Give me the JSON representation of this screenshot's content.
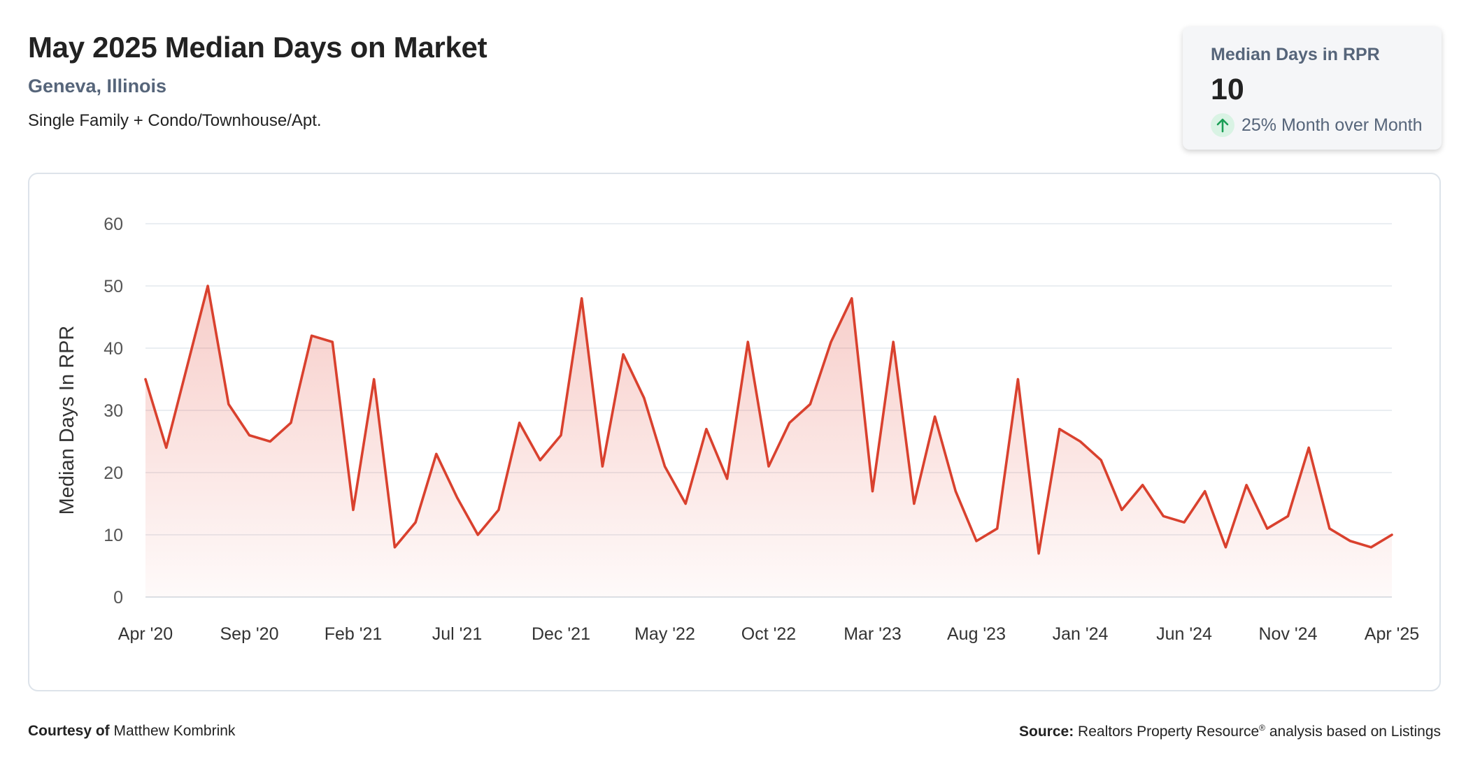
{
  "header": {
    "title": "May 2025 Median Days on Market",
    "location": "Geneva, Illinois",
    "property_types": "Single Family + Condo/Townhouse/Apt."
  },
  "kpi": {
    "label": "Median Days in RPR",
    "value": "10",
    "change": "25% Month over Month",
    "trend_icon": "arrow-up-icon",
    "trend_color": "#1a9e55"
  },
  "footer": {
    "courtesy_label": "Courtesy of",
    "courtesy_name": "Matthew Kombrink",
    "source_label": "Source:",
    "source_name": "Realtors Property Resource",
    "source_mark": "®",
    "source_suffix": "analysis based on Listings"
  },
  "chart_data": {
    "type": "area",
    "title": "",
    "xlabel": "",
    "ylabel": "Median Days In RPR",
    "ylim": [
      0,
      60
    ],
    "yticks": [
      0,
      10,
      20,
      30,
      40,
      50,
      60
    ],
    "grid": true,
    "legend": "none",
    "line_color": "#d9412e",
    "x_tick_labels": [
      "Apr '20",
      "Sep '20",
      "Feb '21",
      "Jul '21",
      "Dec '21",
      "May '22",
      "Oct '22",
      "Mar '23",
      "Aug '23",
      "Jan '24",
      "Jun '24",
      "Nov '24",
      "Apr '25"
    ],
    "x": [
      "2020-04",
      "2020-05",
      "2020-06",
      "2020-07",
      "2020-08",
      "2020-09",
      "2020-10",
      "2020-11",
      "2020-12",
      "2021-01",
      "2021-02",
      "2021-03",
      "2021-04",
      "2021-05",
      "2021-06",
      "2021-07",
      "2021-08",
      "2021-09",
      "2021-10",
      "2021-11",
      "2021-12",
      "2022-01",
      "2022-02",
      "2022-03",
      "2022-04",
      "2022-05",
      "2022-06",
      "2022-07",
      "2022-08",
      "2022-09",
      "2022-10",
      "2022-11",
      "2022-12",
      "2023-01",
      "2023-02",
      "2023-03",
      "2023-04",
      "2023-05",
      "2023-06",
      "2023-07",
      "2023-08",
      "2023-09",
      "2023-10",
      "2023-11",
      "2023-12",
      "2024-01",
      "2024-02",
      "2024-03",
      "2024-04",
      "2024-05",
      "2024-06",
      "2024-07",
      "2024-08",
      "2024-09",
      "2024-10",
      "2024-11",
      "2024-12",
      "2025-01",
      "2025-02",
      "2025-03",
      "2025-04"
    ],
    "values": [
      35,
      24,
      37,
      50,
      31,
      26,
      25,
      28,
      42,
      41,
      14,
      35,
      8,
      12,
      23,
      16,
      10,
      14,
      28,
      22,
      26,
      48,
      21,
      39,
      32,
      21,
      15,
      27,
      19,
      41,
      21,
      28,
      31,
      41,
      48,
      17,
      41,
      15,
      29,
      17,
      9,
      11,
      35,
      7,
      27,
      25,
      22,
      14,
      18,
      13,
      12,
      17,
      8,
      18,
      11,
      13,
      24,
      11,
      9,
      8,
      10
    ]
  }
}
